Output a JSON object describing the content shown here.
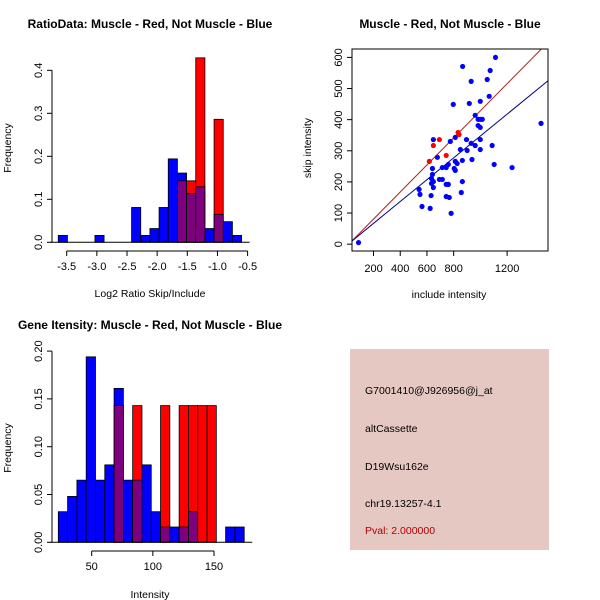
{
  "chart_data": [
    {
      "type": "bar",
      "subtype": "overlaid-histogram",
      "title": "RatioData: Muscle - Red, Not Muscle - Blue",
      "xlabel": "Log2 Ratio Skip/Include",
      "ylabel": "Frequency",
      "xticks": [
        "-3.5",
        "-3.0",
        "-2.5",
        "-2.0",
        "-1.5",
        "-1.0",
        "-0.5"
      ],
      "xtick_values": [
        -3.5,
        -3.0,
        -2.5,
        -2.0,
        -1.5,
        -1.0,
        -0.5
      ],
      "yticks": [
        "0.0",
        "0.1",
        "0.2",
        "0.3",
        "0.4"
      ],
      "ytick_values": [
        0,
        0.1,
        0.2,
        0.3,
        0.4
      ],
      "bin_start": -3.64,
      "bin_width": 0.152,
      "series": [
        {
          "name": "Not Muscle",
          "color": "#0000ff",
          "values": [
            0.016,
            0,
            0,
            0,
            0.016,
            0,
            0,
            0,
            0.081,
            0.016,
            0.032,
            0.081,
            0.194,
            0.161,
            0.113,
            0.129,
            0.032,
            0.065,
            0.048,
            0.016
          ]
        },
        {
          "name": "Muscle",
          "color": "#ff0000",
          "values": [
            0,
            0,
            0,
            0,
            0,
            0,
            0,
            0,
            0,
            0,
            0,
            0,
            0,
            0.143,
            0.143,
            0.429,
            0,
            0.286,
            0,
            0
          ]
        }
      ],
      "overlap_color": "#7f007f"
    },
    {
      "type": "scatter",
      "title": "Muscle - Red, Not Muscle - Blue",
      "xlabel": "include intensity",
      "ylabel": "skip intensity",
      "xlim": [
        39,
        1506
      ],
      "ylim": [
        -22,
        627
      ],
      "xticks": [
        "200",
        "400",
        "600",
        "800",
        "1200"
      ],
      "xtick_values": [
        200,
        400,
        600,
        800,
        1200
      ],
      "yticks": [
        "0",
        "100",
        "200",
        "300",
        "400",
        "500",
        "600"
      ],
      "ytick_values": [
        0,
        100,
        200,
        300,
        400,
        500,
        600
      ],
      "series": [
        {
          "name": "Not Muscle",
          "color": "#0000ff",
          "points": [
            [
              88,
              5
            ],
            [
              1113,
              600
            ],
            [
              867,
              571
            ],
            [
              1073,
              558
            ],
            [
              931,
              523
            ],
            [
              1051,
              529
            ],
            [
              1066,
              475
            ],
            [
              797,
              449
            ],
            [
              917,
              452
            ],
            [
              999,
              459
            ],
            [
              961,
              414
            ],
            [
              983,
              381
            ],
            [
              999,
              375
            ],
            [
              999,
              401
            ],
            [
              1014,
              401
            ],
            [
              983,
              401
            ],
            [
              1454,
              388
            ],
            [
              812,
              343
            ],
            [
              775,
              330
            ],
            [
              648,
              336
            ],
            [
              896,
              336
            ],
            [
              999,
              336
            ],
            [
              1088,
              317
            ],
            [
              850,
              304
            ],
            [
              901,
              301
            ],
            [
              931,
              324
            ],
            [
              961,
              317
            ],
            [
              999,
              304
            ],
            [
              678,
              279
            ],
            [
              812,
              266
            ],
            [
              826,
              259
            ],
            [
              865,
              269
            ],
            [
              937,
              272
            ],
            [
              1103,
              256
            ],
            [
              1237,
              246
            ],
            [
              641,
              243
            ],
            [
              715,
              246
            ],
            [
              744,
              246
            ],
            [
              760,
              256
            ],
            [
              804,
              243
            ],
            [
              812,
              237
            ],
            [
              641,
              224
            ],
            [
              634,
              211
            ],
            [
              693,
              208
            ],
            [
              715,
              208
            ],
            [
              648,
              201
            ],
            [
              634,
              195
            ],
            [
              648,
              182
            ],
            [
              744,
              192
            ],
            [
              760,
              192
            ],
            [
              865,
              201
            ],
            [
              541,
              176
            ],
            [
              548,
              160
            ],
            [
              631,
              156
            ],
            [
              744,
              153
            ],
            [
              767,
              150
            ],
            [
              857,
              166
            ],
            [
              563,
              121
            ],
            [
              624,
              115
            ],
            [
              781,
              99
            ]
          ]
        },
        {
          "name": "Muscle",
          "color": "#ff0000",
          "points": [
            [
              618,
              266
            ],
            [
              648,
              317
            ],
            [
              693,
              336
            ],
            [
              744,
              285
            ],
            [
              833,
              359
            ],
            [
              840,
              352
            ]
          ]
        }
      ],
      "fit_lines": [
        {
          "name": "Muscle fit",
          "color": "#b22222",
          "slope": 0.435,
          "intercept": -6.5
        },
        {
          "name": "Not Muscle fit",
          "color": "#00008b",
          "slope": 0.351,
          "intercept": -3.5
        }
      ]
    },
    {
      "type": "bar",
      "subtype": "overlaid-histogram",
      "title": "Gene Itensity: Muscle - Red, Not Muscle - Blue",
      "xlabel": "Intensity",
      "ylabel": "Frequency",
      "xticks": [
        "50",
        "100",
        "150"
      ],
      "xtick_values": [
        50,
        100,
        150
      ],
      "yticks": [
        "0.00",
        "0.05",
        "0.10",
        "0.15",
        "0.20"
      ],
      "ytick_values": [
        0,
        0.05,
        0.1,
        0.15,
        0.2
      ],
      "bin_start": 22.7,
      "bin_width": 7.6,
      "series": [
        {
          "name": "Not Muscle",
          "color": "#0000ff",
          "values": [
            0.032,
            0.048,
            0.065,
            0.194,
            0.065,
            0.081,
            0.161,
            0.065,
            0.065,
            0.081,
            0.032,
            0.016,
            0.016,
            0.016,
            0.032,
            0,
            0,
            0,
            0.016,
            0.016
          ]
        },
        {
          "name": "Muscle",
          "color": "#ff0000",
          "values": [
            0,
            0,
            0,
            0,
            0,
            0,
            0.143,
            0,
            0.143,
            0,
            0,
            0.143,
            0,
            0.143,
            0.143,
            0.143,
            0.143,
            0,
            0,
            0
          ]
        }
      ],
      "overlap_color": "#7f007f"
    }
  ],
  "info": {
    "probe": "G7001410@J926956@j_at",
    "event_type": "altCassette",
    "gene": "D19Wsu162e",
    "location": "chr19.13257-4.1",
    "pval": "Pval: 2.000000",
    "pval_color": "#b00000",
    "background": "#e5c8c1"
  }
}
